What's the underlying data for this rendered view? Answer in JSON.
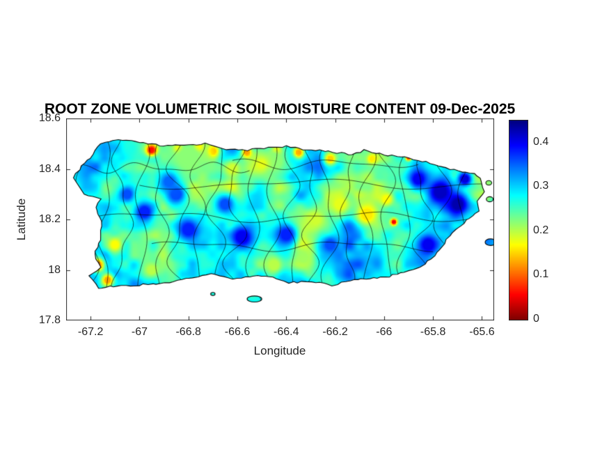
{
  "chart_data": {
    "type": "heatmap",
    "title": "ROOT ZONE VOLUMETRIC SOIL MOISTURE CONTENT 09-Dec-2025",
    "xlabel": "Longitude",
    "ylabel": "Latitude",
    "region": "Puerto Rico",
    "xlim": [
      -67.3,
      -65.55
    ],
    "ylim": [
      17.8,
      18.6
    ],
    "grid": false,
    "xticks": {
      "values": [
        -67.2,
        -67,
        -66.8,
        -66.6,
        -66.4,
        -66.2,
        -66,
        -65.8,
        -65.6
      ],
      "labels": [
        "-67.2",
        "-67",
        "-66.8",
        "-66.6",
        "-66.4",
        "-66.2",
        "-66",
        "-65.8",
        "-65.6"
      ]
    },
    "yticks": {
      "values": [
        17.8,
        18,
        18.2,
        18.4,
        18.6
      ],
      "labels": [
        "17.8",
        "18",
        "18.2",
        "18.4",
        "18.6"
      ]
    },
    "colorbar": {
      "min": 0,
      "max": 0.45,
      "position": "right",
      "colormap": "jet-reversed",
      "ticks": {
        "values": [
          0,
          0.1,
          0.2,
          0.3,
          0.4
        ],
        "labels": [
          "0",
          "0.1",
          "0.2",
          "0.3",
          "0.4"
        ]
      },
      "stops": [
        {
          "v": 0.45,
          "color": "#000080"
        },
        {
          "v": 0.394,
          "color": "#0000ff"
        },
        {
          "v": 0.338,
          "color": "#0080ff"
        },
        {
          "v": 0.281,
          "color": "#00ffff"
        },
        {
          "v": 0.225,
          "color": "#80ff80"
        },
        {
          "v": 0.169,
          "color": "#ffff00"
        },
        {
          "v": 0.113,
          "color": "#ff8000"
        },
        {
          "v": 0.056,
          "color": "#ff0000"
        },
        {
          "v": 0,
          "color": "#800000"
        }
      ]
    },
    "base_moisture": 0.28,
    "region_outline": [
      [
        -67.27,
        18.365
      ],
      [
        -67.235,
        18.41
      ],
      [
        -67.19,
        18.455
      ],
      [
        -67.16,
        18.5
      ],
      [
        -67.09,
        18.515
      ],
      [
        -67.0,
        18.505
      ],
      [
        -66.9,
        18.49
      ],
      [
        -66.8,
        18.495
      ],
      [
        -66.73,
        18.5
      ],
      [
        -66.63,
        18.475
      ],
      [
        -66.56,
        18.475
      ],
      [
        -66.47,
        18.485
      ],
      [
        -66.4,
        18.49
      ],
      [
        -66.33,
        18.475
      ],
      [
        -66.26,
        18.475
      ],
      [
        -66.19,
        18.465
      ],
      [
        -66.13,
        18.455
      ],
      [
        -66.08,
        18.475
      ],
      [
        -66.0,
        18.455
      ],
      [
        -65.93,
        18.45
      ],
      [
        -65.86,
        18.435
      ],
      [
        -65.78,
        18.415
      ],
      [
        -65.7,
        18.39
      ],
      [
        -65.63,
        18.385
      ],
      [
        -65.6,
        18.35
      ],
      [
        -65.59,
        18.31
      ],
      [
        -65.62,
        18.27
      ],
      [
        -65.615,
        18.235
      ],
      [
        -65.66,
        18.195
      ],
      [
        -65.71,
        18.16
      ],
      [
        -65.745,
        18.12
      ],
      [
        -65.78,
        18.07
      ],
      [
        -65.835,
        18.02
      ],
      [
        -65.9,
        17.995
      ],
      [
        -65.98,
        17.975
      ],
      [
        -66.06,
        17.965
      ],
      [
        -66.14,
        17.96
      ],
      [
        -66.21,
        17.94
      ],
      [
        -66.3,
        17.955
      ],
      [
        -66.39,
        17.95
      ],
      [
        -66.47,
        17.975
      ],
      [
        -66.55,
        17.975
      ],
      [
        -66.62,
        17.965
      ],
      [
        -66.71,
        17.985
      ],
      [
        -66.78,
        17.97
      ],
      [
        -66.86,
        17.955
      ],
      [
        -66.93,
        17.945
      ],
      [
        -67.02,
        17.94
      ],
      [
        -67.09,
        17.935
      ],
      [
        -67.17,
        17.93
      ],
      [
        -67.205,
        17.975
      ],
      [
        -67.16,
        18.01
      ],
      [
        -67.185,
        18.06
      ],
      [
        -67.16,
        18.12
      ],
      [
        -67.155,
        18.19
      ],
      [
        -67.18,
        18.25
      ],
      [
        -67.16,
        18.28
      ],
      [
        -67.225,
        18.3
      ]
    ],
    "islets": [
      {
        "lon": -66.53,
        "lat": 17.885,
        "rx": 0.03,
        "ry": 0.012
      },
      {
        "lon": -66.7,
        "lat": 17.905,
        "rx": 0.009,
        "ry": 0.006
      },
      {
        "lon": -65.572,
        "lat": 18.345,
        "rx": 0.012,
        "ry": 0.009
      },
      {
        "lon": -65.568,
        "lat": 18.28,
        "rx": 0.014,
        "ry": 0.01
      },
      {
        "lon": -65.565,
        "lat": 18.11,
        "rx": 0.022,
        "ry": 0.013
      }
    ],
    "features": [
      {
        "lon": -66.95,
        "lat": 18.475,
        "value": 0.05,
        "radius": 0.022
      },
      {
        "lon": -66.84,
        "lat": 18.48,
        "value": 0.06,
        "radius": 0.018
      },
      {
        "lon": -66.76,
        "lat": 18.485,
        "value": 0.05,
        "radius": 0.02
      },
      {
        "lon": -66.7,
        "lat": 18.47,
        "value": 0.12,
        "radius": 0.025
      },
      {
        "lon": -66.56,
        "lat": 18.465,
        "value": 0.12,
        "radius": 0.02
      },
      {
        "lon": -66.44,
        "lat": 18.47,
        "value": 0.07,
        "radius": 0.02
      },
      {
        "lon": -66.35,
        "lat": 18.465,
        "value": 0.12,
        "radius": 0.022
      },
      {
        "lon": -66.22,
        "lat": 18.44,
        "value": 0.15,
        "radius": 0.025
      },
      {
        "lon": -66.05,
        "lat": 18.44,
        "value": 0.16,
        "radius": 0.02
      },
      {
        "lon": -65.9,
        "lat": 18.445,
        "value": 0.07,
        "radius": 0.012
      },
      {
        "lon": -66.8,
        "lat": 18.44,
        "value": 0.22,
        "radius": 0.09
      },
      {
        "lon": -66.45,
        "lat": 18.43,
        "value": 0.22,
        "radius": 0.07
      },
      {
        "lon": -66.07,
        "lat": 18.22,
        "value": 0.16,
        "radius": 0.05
      },
      {
        "lon": -65.96,
        "lat": 18.19,
        "value": 0.05,
        "radius": 0.013
      },
      {
        "lon": -66.18,
        "lat": 18.26,
        "value": 0.18,
        "radius": 0.045
      },
      {
        "lon": -66.28,
        "lat": 18.2,
        "value": 0.19,
        "radius": 0.04
      },
      {
        "lon": -65.99,
        "lat": 18.28,
        "value": 0.17,
        "radius": 0.03
      },
      {
        "lon": -67.17,
        "lat": 18.02,
        "value": 0.12,
        "radius": 0.028
      },
      {
        "lon": -67.13,
        "lat": 17.96,
        "value": 0.13,
        "radius": 0.025
      },
      {
        "lon": -67.1,
        "lat": 18.1,
        "value": 0.17,
        "radius": 0.03
      },
      {
        "lon": -66.95,
        "lat": 18.0,
        "value": 0.2,
        "radius": 0.035
      },
      {
        "lon": -66.45,
        "lat": 18.02,
        "value": 0.2,
        "radius": 0.04
      },
      {
        "lon": -66.33,
        "lat": 18.05,
        "value": 0.21,
        "radius": 0.035
      },
      {
        "lon": -66.62,
        "lat": 18.4,
        "value": 0.19,
        "radius": 0.035
      },
      {
        "lon": -66.5,
        "lat": 18.42,
        "value": 0.18,
        "radius": 0.03
      },
      {
        "lon": -65.77,
        "lat": 18.31,
        "value": 0.42,
        "radius": 0.055
      },
      {
        "lon": -65.7,
        "lat": 18.26,
        "value": 0.43,
        "radius": 0.045
      },
      {
        "lon": -65.86,
        "lat": 18.36,
        "value": 0.4,
        "radius": 0.04
      },
      {
        "lon": -65.67,
        "lat": 18.36,
        "value": 0.41,
        "radius": 0.03
      },
      {
        "lon": -65.82,
        "lat": 18.1,
        "value": 0.4,
        "radius": 0.045
      },
      {
        "lon": -66.98,
        "lat": 18.23,
        "value": 0.38,
        "radius": 0.045
      },
      {
        "lon": -66.85,
        "lat": 18.3,
        "value": 0.36,
        "radius": 0.045
      },
      {
        "lon": -66.8,
        "lat": 18.16,
        "value": 0.38,
        "radius": 0.05
      },
      {
        "lon": -66.58,
        "lat": 18.13,
        "value": 0.4,
        "radius": 0.05
      },
      {
        "lon": -66.4,
        "lat": 18.14,
        "value": 0.38,
        "radius": 0.045
      },
      {
        "lon": -66.65,
        "lat": 18.26,
        "value": 0.36,
        "radius": 0.04
      },
      {
        "lon": -67.05,
        "lat": 18.3,
        "value": 0.36,
        "radius": 0.035
      },
      {
        "lon": -66.22,
        "lat": 18.1,
        "value": 0.36,
        "radius": 0.04
      },
      {
        "lon": -66.88,
        "lat": 18.35,
        "value": 0.35,
        "radius": 0.04
      }
    ],
    "boundaries": {
      "style": "municipal",
      "vertical_lons": [
        -67.21,
        -67.14,
        -67.07,
        -66.99,
        -66.915,
        -66.84,
        -66.76,
        -66.685,
        -66.61,
        -66.535,
        -66.455,
        -66.38,
        -66.3,
        -66.225,
        -66.15,
        -66.07,
        -65.99,
        -65.915,
        -65.84,
        -65.76,
        -65.68
      ],
      "horizontal_lines": [
        {
          "lat": 18.34,
          "from": -67.0,
          "to": -65.6
        },
        {
          "lat": 18.21,
          "from": -67.19,
          "to": -65.66
        },
        {
          "lat": 18.095,
          "from": -66.95,
          "to": -65.8
        },
        {
          "lat": 18.42,
          "from": -66.62,
          "to": -65.86
        },
        {
          "lat": 18.405,
          "from": -67.23,
          "to": -66.55
        }
      ]
    }
  }
}
